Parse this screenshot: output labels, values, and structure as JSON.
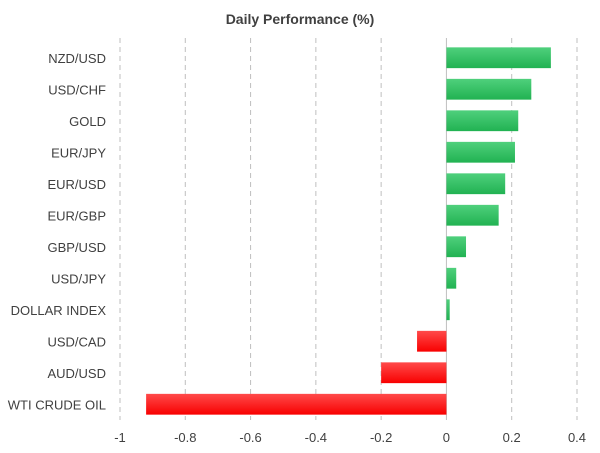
{
  "chart_data": {
    "type": "bar",
    "orientation": "horizontal",
    "title": "Daily Performance (%)",
    "xlabel": "",
    "ylabel": "",
    "xlim": [
      -1,
      0.4
    ],
    "ticks": [
      -1,
      -0.8,
      -0.6,
      -0.4,
      -0.2,
      0,
      0.2,
      0.4
    ],
    "tick_labels": [
      "-1",
      "-0.8",
      "-0.6",
      "-0.4",
      "-0.2",
      "0",
      "0.2",
      "0.4"
    ],
    "grid": true,
    "categories": [
      "NZD/USD",
      "USD/CHF",
      "GOLD",
      "EUR/JPY",
      "EUR/USD",
      "EUR/GBP",
      "GBP/USD",
      "USD/JPY",
      "DOLLAR INDEX",
      "USD/CAD",
      "AUD/USD",
      "WTI CRUDE OIL"
    ],
    "values": [
      0.32,
      0.26,
      0.22,
      0.21,
      0.18,
      0.16,
      0.06,
      0.03,
      0.01,
      -0.09,
      -0.2,
      -0.92
    ],
    "colors": {
      "positive": "#21b252",
      "positive_light": "#4fd07c",
      "negative": "#f80000",
      "negative_light": "#ff4a4a"
    }
  }
}
